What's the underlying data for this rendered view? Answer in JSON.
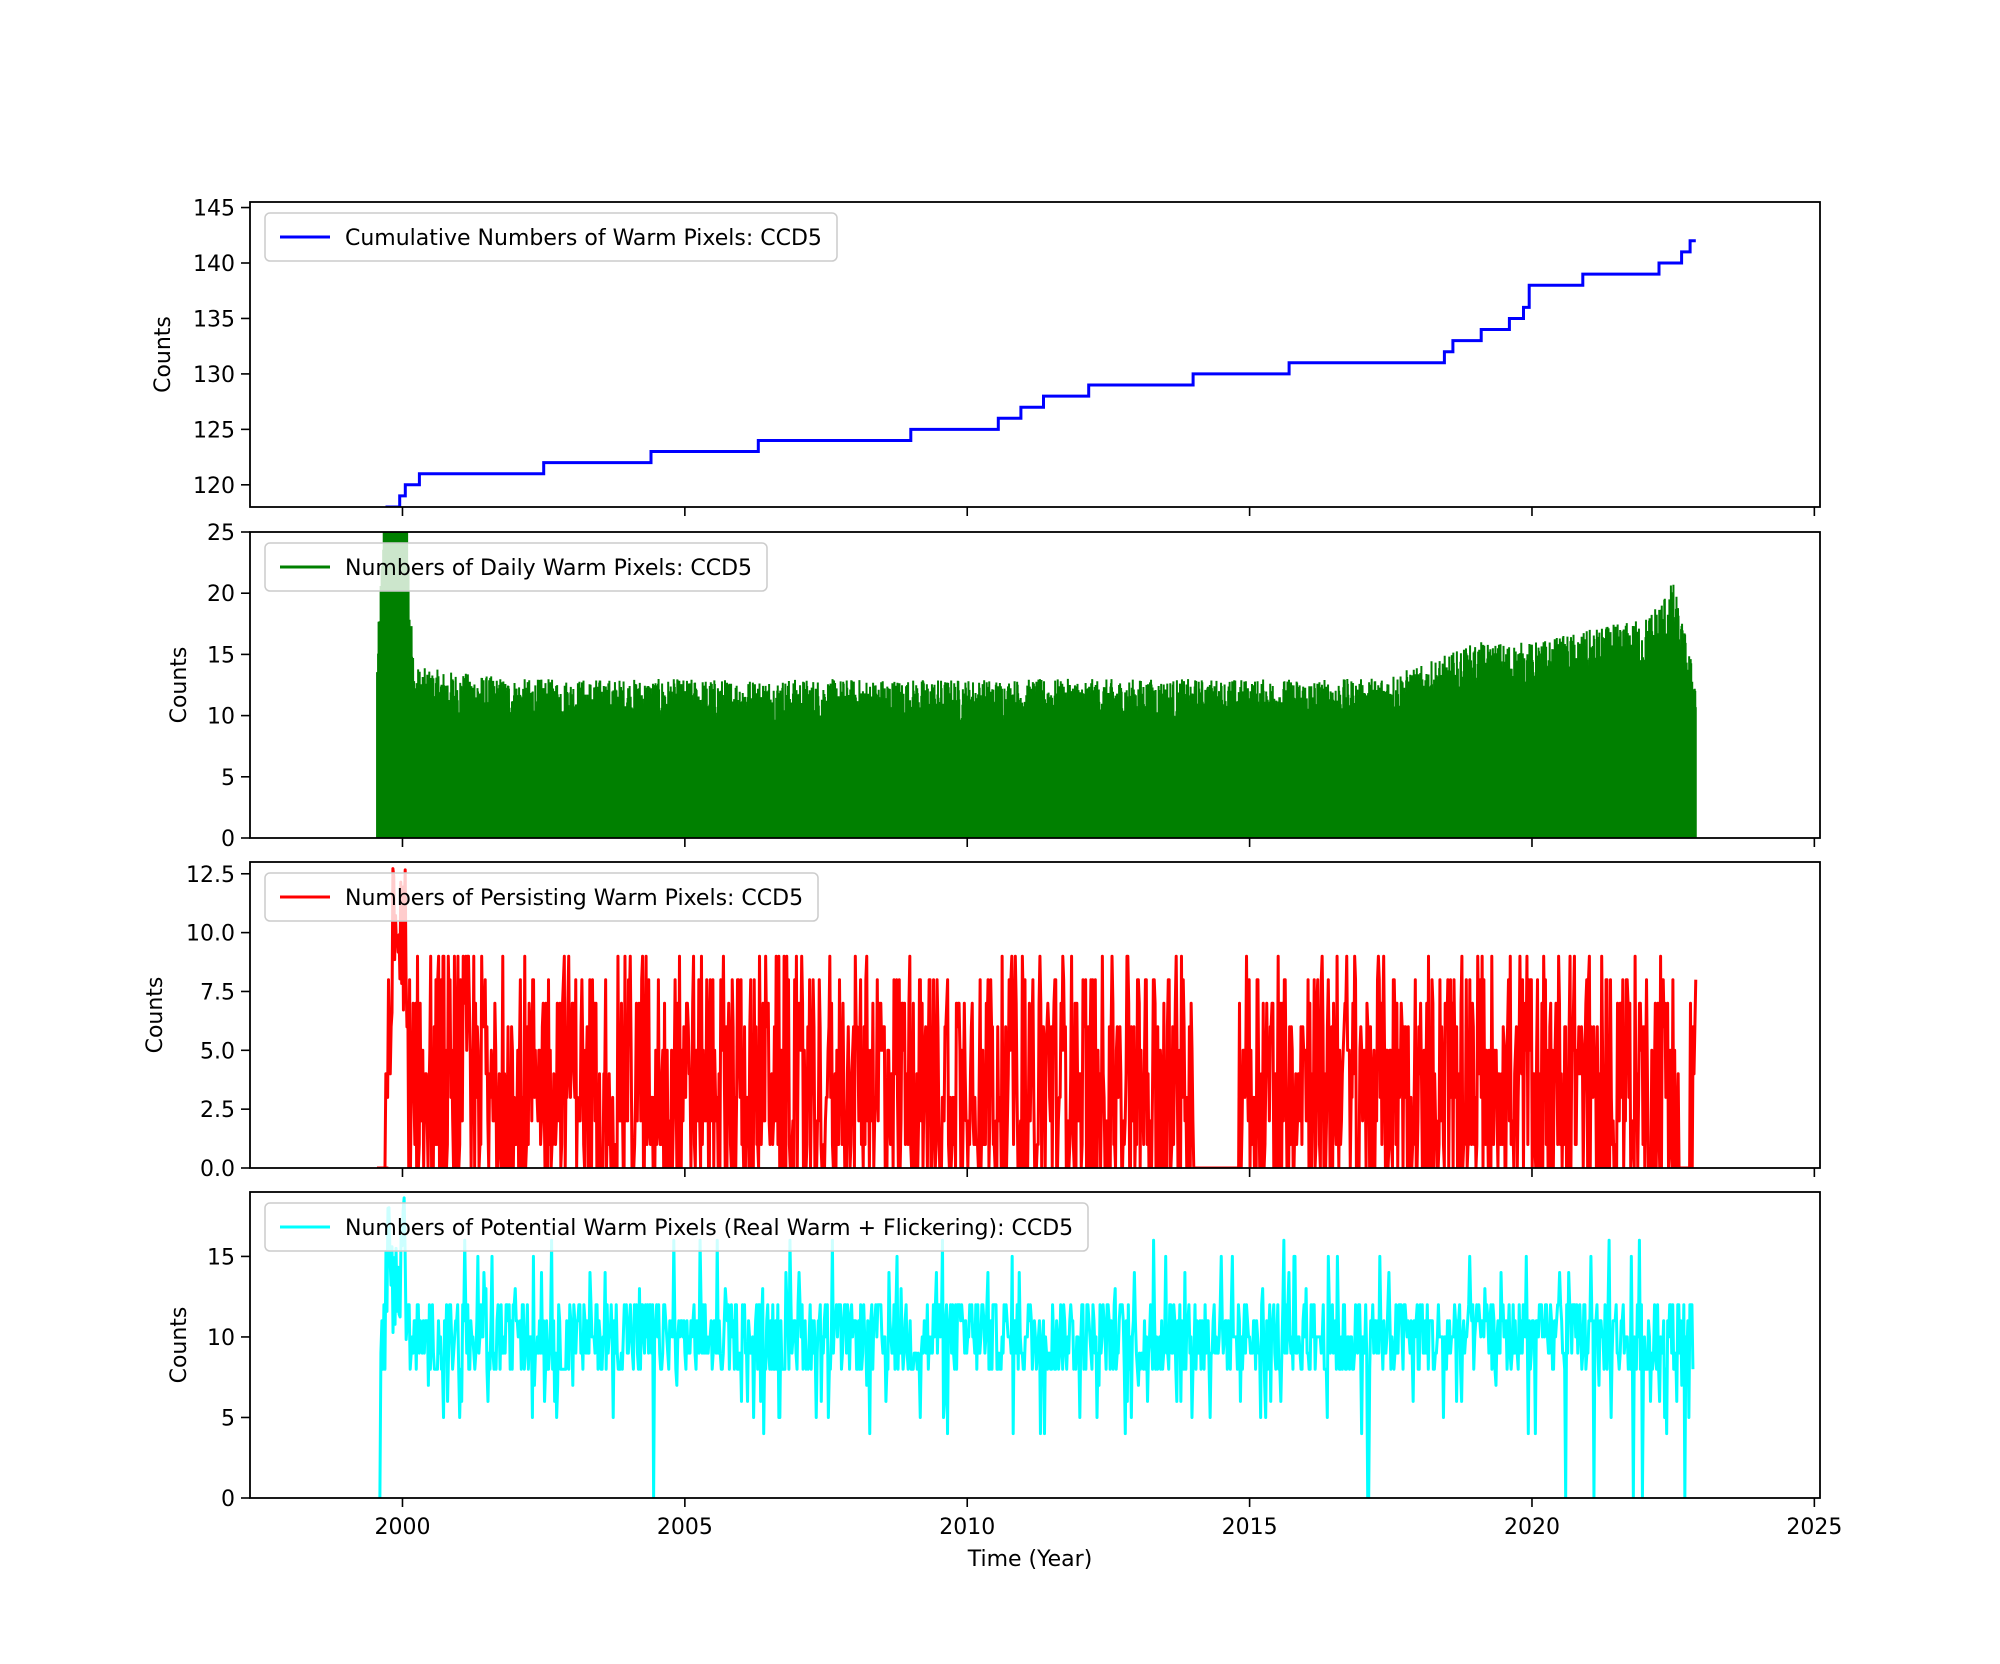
{
  "figure": {
    "xlabel": "Time (Year)"
  },
  "chart_data": [
    {
      "type": "line",
      "legend": "Cumulative Numbers of Warm Pixels: CCD5",
      "legend_placement": "top-left",
      "color": "#0000ff",
      "ylabel": "Counts",
      "xlim": [
        1997.3,
        2025.1
      ],
      "ylim": [
        118,
        145.5
      ],
      "yticks": [
        120,
        125,
        130,
        135,
        140,
        145
      ],
      "ytick_labels": [
        "120",
        "125",
        "130",
        "135",
        "140",
        "145"
      ],
      "step": true,
      "x": [
        1999.7,
        1999.95,
        2000.05,
        2000.3,
        2002.5,
        2004.4,
        2006.3,
        2009.0,
        2010.55,
        2010.95,
        2011.35,
        2012.15,
        2014.0,
        2015.7,
        2018.45,
        2018.6,
        2019.1,
        2019.6,
        2019.85,
        2019.95,
        2020.9,
        2022.25,
        2022.65,
        2022.8
      ],
      "y": [
        118,
        119,
        120,
        121,
        122,
        123,
        124,
        125,
        126,
        127,
        128,
        129,
        130,
        131,
        132,
        133,
        134,
        135,
        136,
        138,
        139,
        140,
        141,
        142
      ],
      "x_end": 2022.9
    },
    {
      "type": "line",
      "legend": "Numbers of Daily Warm Pixels: CCD5",
      "legend_placement": "top-left",
      "color": "#008000",
      "ylabel": "Counts",
      "xlim": [
        1997.3,
        2025.1
      ],
      "ylim": [
        0,
        25
      ],
      "yticks": [
        0,
        5,
        10,
        15,
        20,
        25
      ],
      "ytick_labels": [
        "0",
        "5",
        "10",
        "15",
        "20",
        "25"
      ],
      "render": "dense-oscillation",
      "x_range": [
        1999.55,
        2022.9
      ],
      "envelope_x": [
        1999.55,
        1999.65,
        2000.1,
        2000.2,
        2002.0,
        2004.0,
        2006.0,
        2008.0,
        2010.0,
        2012.0,
        2014.0,
        2016.0,
        2017.0,
        2018.0,
        2019.0,
        2020.0,
        2021.0,
        2022.0,
        2022.5,
        2022.9
      ],
      "envelope_max": [
        15,
        25,
        25,
        14,
        13,
        13,
        13,
        13,
        13,
        13,
        13,
        13,
        13,
        14,
        16,
        16,
        17,
        18,
        21,
        13
      ],
      "envelope_baseline": [
        0,
        0,
        0,
        1,
        1,
        1,
        1,
        1,
        1,
        1,
        1,
        1,
        1,
        1,
        1,
        1,
        1,
        1,
        1,
        0
      ]
    },
    {
      "type": "line",
      "legend": "Numbers of Persisting Warm Pixels: CCD5",
      "legend_placement": "top-left",
      "color": "#ff0000",
      "ylabel": "Counts",
      "xlim": [
        1997.3,
        2025.1
      ],
      "ylim": [
        0,
        13
      ],
      "yticks": [
        0,
        2.5,
        5,
        7.5,
        10,
        12.5
      ],
      "ytick_labels": [
        "0.0",
        "2.5",
        "5.0",
        "7.5",
        "10.0",
        "12.5"
      ],
      "render": "noisy-series",
      "x_range": [
        1999.55,
        2022.9
      ],
      "zero_segments": [
        [
          1999.55,
          1999.7
        ],
        [
          2014.0,
          2014.8
        ],
        [
          2022.6,
          2022.8
        ]
      ],
      "spike_x": [
        1999.8,
        2000.05
      ],
      "spike_value": 13,
      "typical_range": [
        0,
        10
      ]
    },
    {
      "type": "line",
      "legend": "Numbers of Potential Warm Pixels (Real Warm + Flickering): CCD5",
      "legend_placement": "top-left",
      "color": "#00ffff",
      "ylabel": "Counts",
      "xlim": [
        1997.3,
        2025.1
      ],
      "ylim": [
        0,
        19
      ],
      "yticks": [
        0,
        5,
        10,
        15
      ],
      "ytick_labels": [
        "0",
        "5",
        "10",
        "15"
      ],
      "xticks": [
        2000,
        2005,
        2010,
        2015,
        2020,
        2025
      ],
      "xtick_labels": [
        "2000",
        "2005",
        "2010",
        "2015",
        "2020",
        "2025"
      ],
      "render": "noisy-series",
      "x_range": [
        1999.6,
        2022.85
      ],
      "spike_x": [
        1999.7,
        2000.1
      ],
      "spike_value": 19,
      "dips_to_zero": [
        1999.6,
        2004.45,
        2017.1,
        2020.6,
        2021.1,
        2021.8,
        2021.95,
        2022.7
      ],
      "typical_range": [
        6,
        14
      ]
    }
  ]
}
